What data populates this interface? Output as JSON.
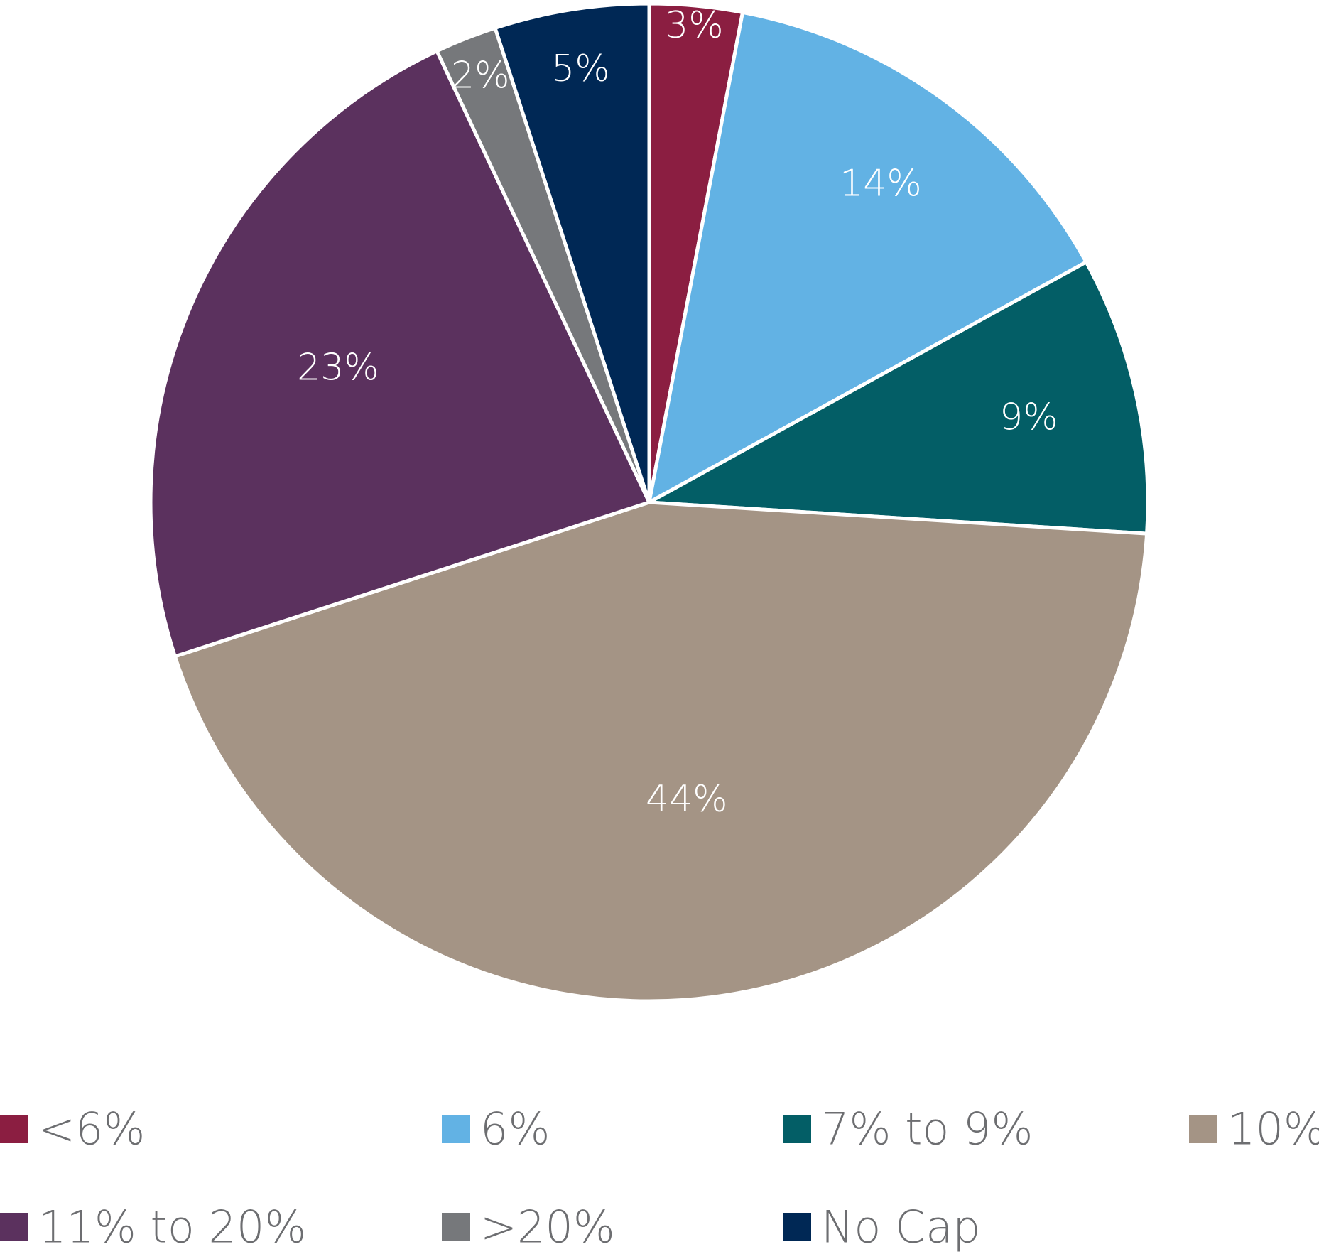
{
  "chart_data": {
    "type": "pie",
    "categories": [
      "<6%",
      "6%",
      "7% to 9%",
      "10%",
      "11% to 20%",
      ">20%",
      "No Cap"
    ],
    "values": [
      3,
      14,
      9,
      44,
      23,
      2,
      5
    ],
    "labels": [
      "3%",
      "14%",
      "9%",
      "44%",
      "23%",
      "2%",
      "5%"
    ],
    "colors": [
      "#8b1e41",
      "#62b2e4",
      "#035e66",
      "#a49485",
      "#5b315e",
      "#76787b",
      "#002855"
    ],
    "start_angle_deg": 0,
    "direction": "clockwise",
    "legend": {
      "placement": "bottom",
      "entries": [
        "<6%",
        "6%",
        "7% to 9%",
        "10%",
        "11% to 20%",
        ">20%",
        "No Cap"
      ]
    }
  }
}
